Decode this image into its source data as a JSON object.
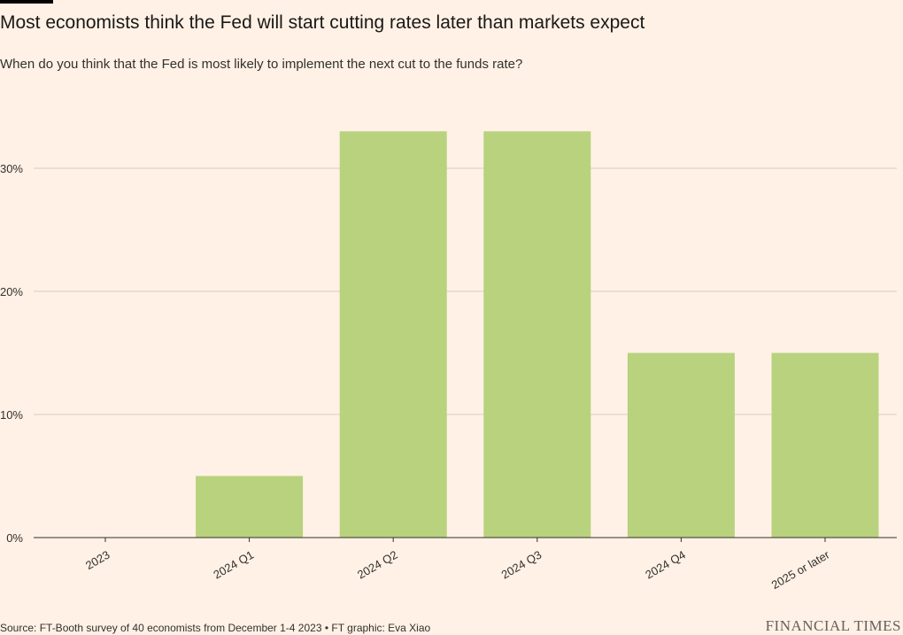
{
  "title": "Most economists think the Fed will start cutting rates later than markets expect",
  "subtitle": "When do you think that the Fed is most likely to implement the next cut to the funds rate?",
  "source": "Source: FT-Booth survey of 40 economists from December 1-4 2023 • FT graphic: Eva Xiao",
  "brand": "FINANCIAL TIMES",
  "colors": {
    "background": "#fff1e5",
    "bar": "#b8d27d",
    "grid": "#d9ccc0",
    "baseline": "#33302e",
    "text": "#33302e"
  },
  "chart_data": {
    "type": "bar",
    "title": "Most economists think the Fed will start cutting rates later than markets expect",
    "subtitle": "When do you think that the Fed is most likely to implement the next cut to the funds rate?",
    "categories": [
      "2023",
      "2024 Q1",
      "2024 Q2",
      "2024 Q3",
      "2024 Q4",
      "2025 or later"
    ],
    "values": [
      0,
      5,
      33,
      33,
      15,
      15
    ],
    "unit": "%",
    "xlabel": "",
    "ylabel": "",
    "ylim": [
      0,
      35
    ],
    "yticks": [
      0,
      10,
      20,
      30
    ],
    "ytick_labels": [
      "0%",
      "10%",
      "20%",
      "30%"
    ],
    "grid": true,
    "legend": "none"
  }
}
